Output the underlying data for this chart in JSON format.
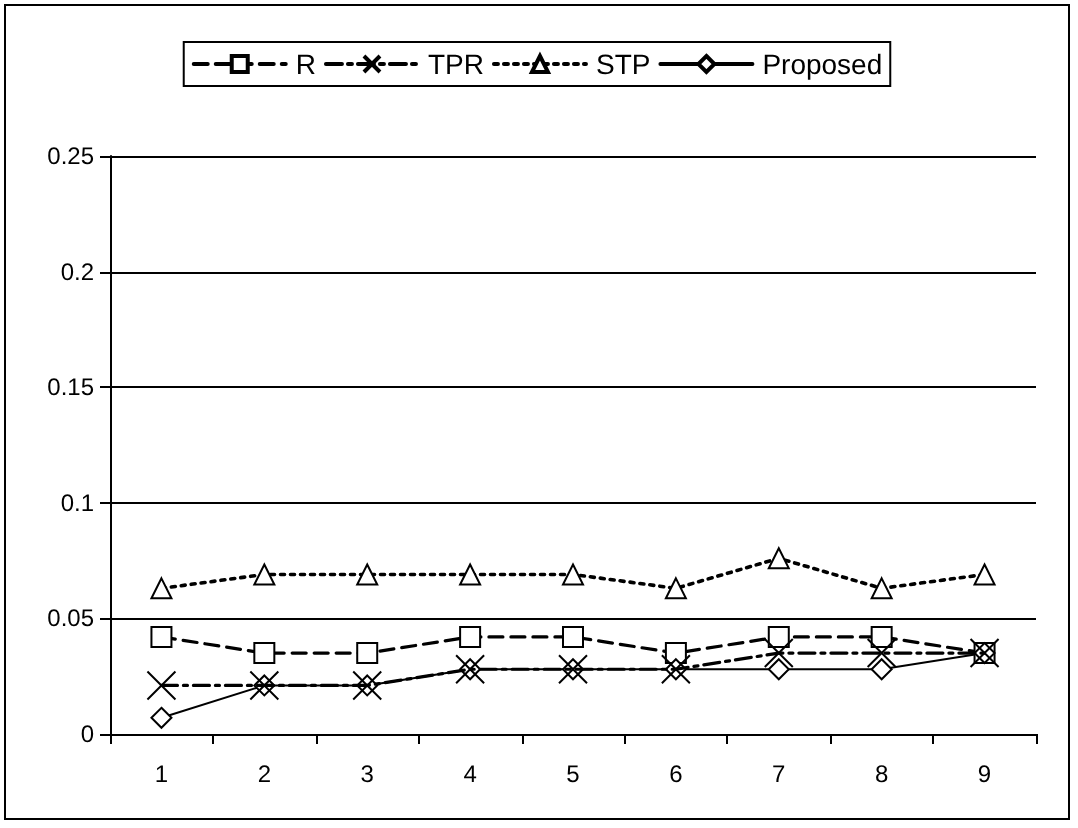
{
  "chart_data": {
    "type": "line",
    "categories": [
      "1",
      "2",
      "3",
      "4",
      "5",
      "6",
      "7",
      "8",
      "9"
    ],
    "series": [
      {
        "name": "R",
        "color": "#000000",
        "marker": "square",
        "line_style": "dashed",
        "values": [
          0.042,
          0.035,
          0.035,
          0.042,
          0.042,
          0.035,
          0.042,
          0.042,
          0.035
        ]
      },
      {
        "name": "TPR",
        "color": "#000000",
        "marker": "cross",
        "line_style": "dashdot",
        "values": [
          0.021,
          0.021,
          0.021,
          0.028,
          0.028,
          0.028,
          0.035,
          0.035,
          0.035
        ]
      },
      {
        "name": "STP",
        "color": "#000000",
        "marker": "triangle",
        "line_style": "dotted",
        "values": [
          0.063,
          0.069,
          0.069,
          0.069,
          0.069,
          0.063,
          0.076,
          0.063,
          0.069
        ]
      },
      {
        "name": "Proposed",
        "color": "#000000",
        "marker": "diamond",
        "line_style": "solid",
        "values": [
          0.007,
          0.021,
          0.021,
          0.028,
          0.028,
          0.028,
          0.028,
          0.028,
          0.035
        ]
      }
    ],
    "ylim": [
      0,
      0.25
    ],
    "yticks": [
      0,
      0.05,
      0.1,
      0.15,
      0.2,
      0.25
    ],
    "grid": "y",
    "legend": "top"
  }
}
